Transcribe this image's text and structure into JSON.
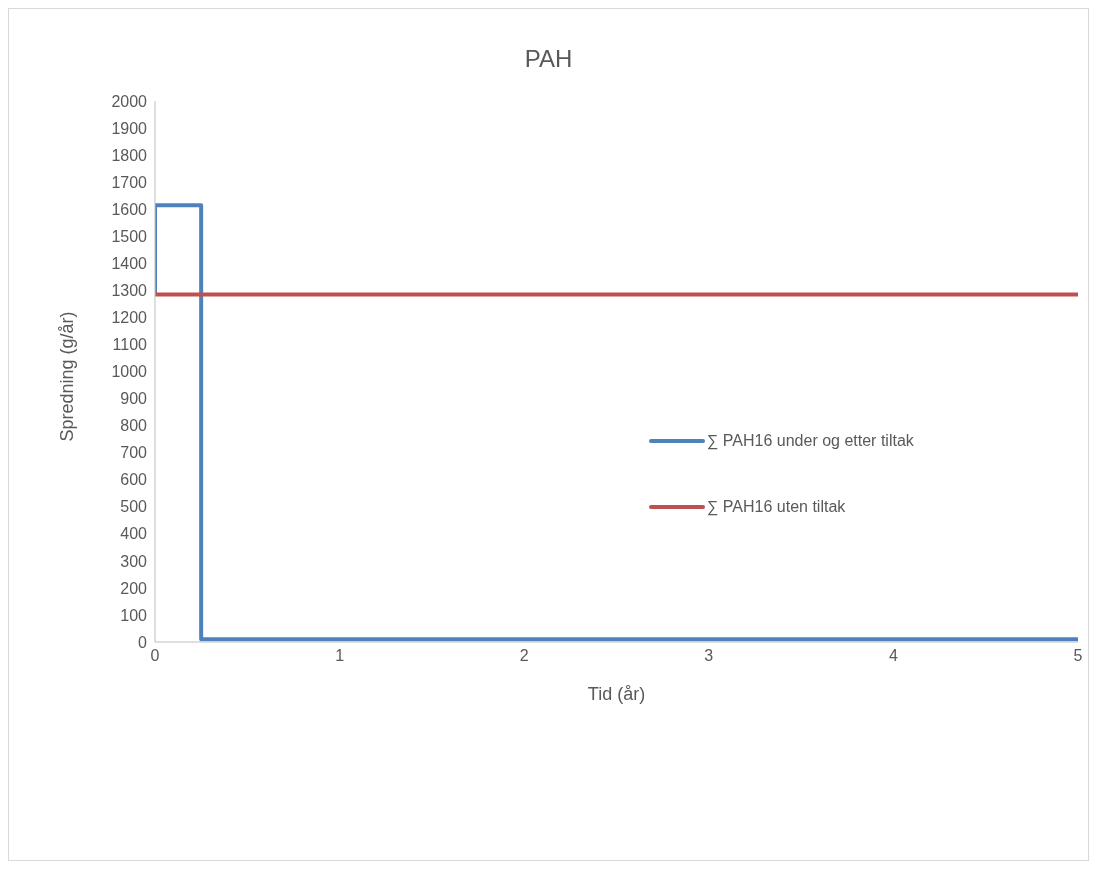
{
  "chart_data": {
    "type": "line",
    "title": "PAH",
    "xlabel": "Tid (år)",
    "ylabel": "Spredning (g/år)",
    "xlim": [
      0,
      5
    ],
    "xticks": [
      0,
      1,
      2,
      3,
      4,
      5
    ],
    "ylim": [
      0,
      2000
    ],
    "yticks": [
      0,
      100,
      200,
      300,
      400,
      500,
      600,
      700,
      800,
      900,
      1000,
      1100,
      1200,
      1300,
      1400,
      1500,
      1600,
      1700,
      1800,
      1900,
      2000
    ],
    "grid": false,
    "legend": "right",
    "marker": "none",
    "line_style": "solid",
    "series": [
      {
        "name": "∑ PAH16 under og etter tiltak",
        "color": "#4f81bd",
        "x": [
          0,
          0,
          0.25,
          0.25,
          5
        ],
        "values": [
          1285,
          1615,
          1615,
          10,
          10
        ]
      },
      {
        "name": "∑ PAH16 uten tiltak",
        "color": "#c0504d",
        "x": [
          0,
          5
        ],
        "values": [
          1285,
          1285
        ]
      }
    ]
  }
}
